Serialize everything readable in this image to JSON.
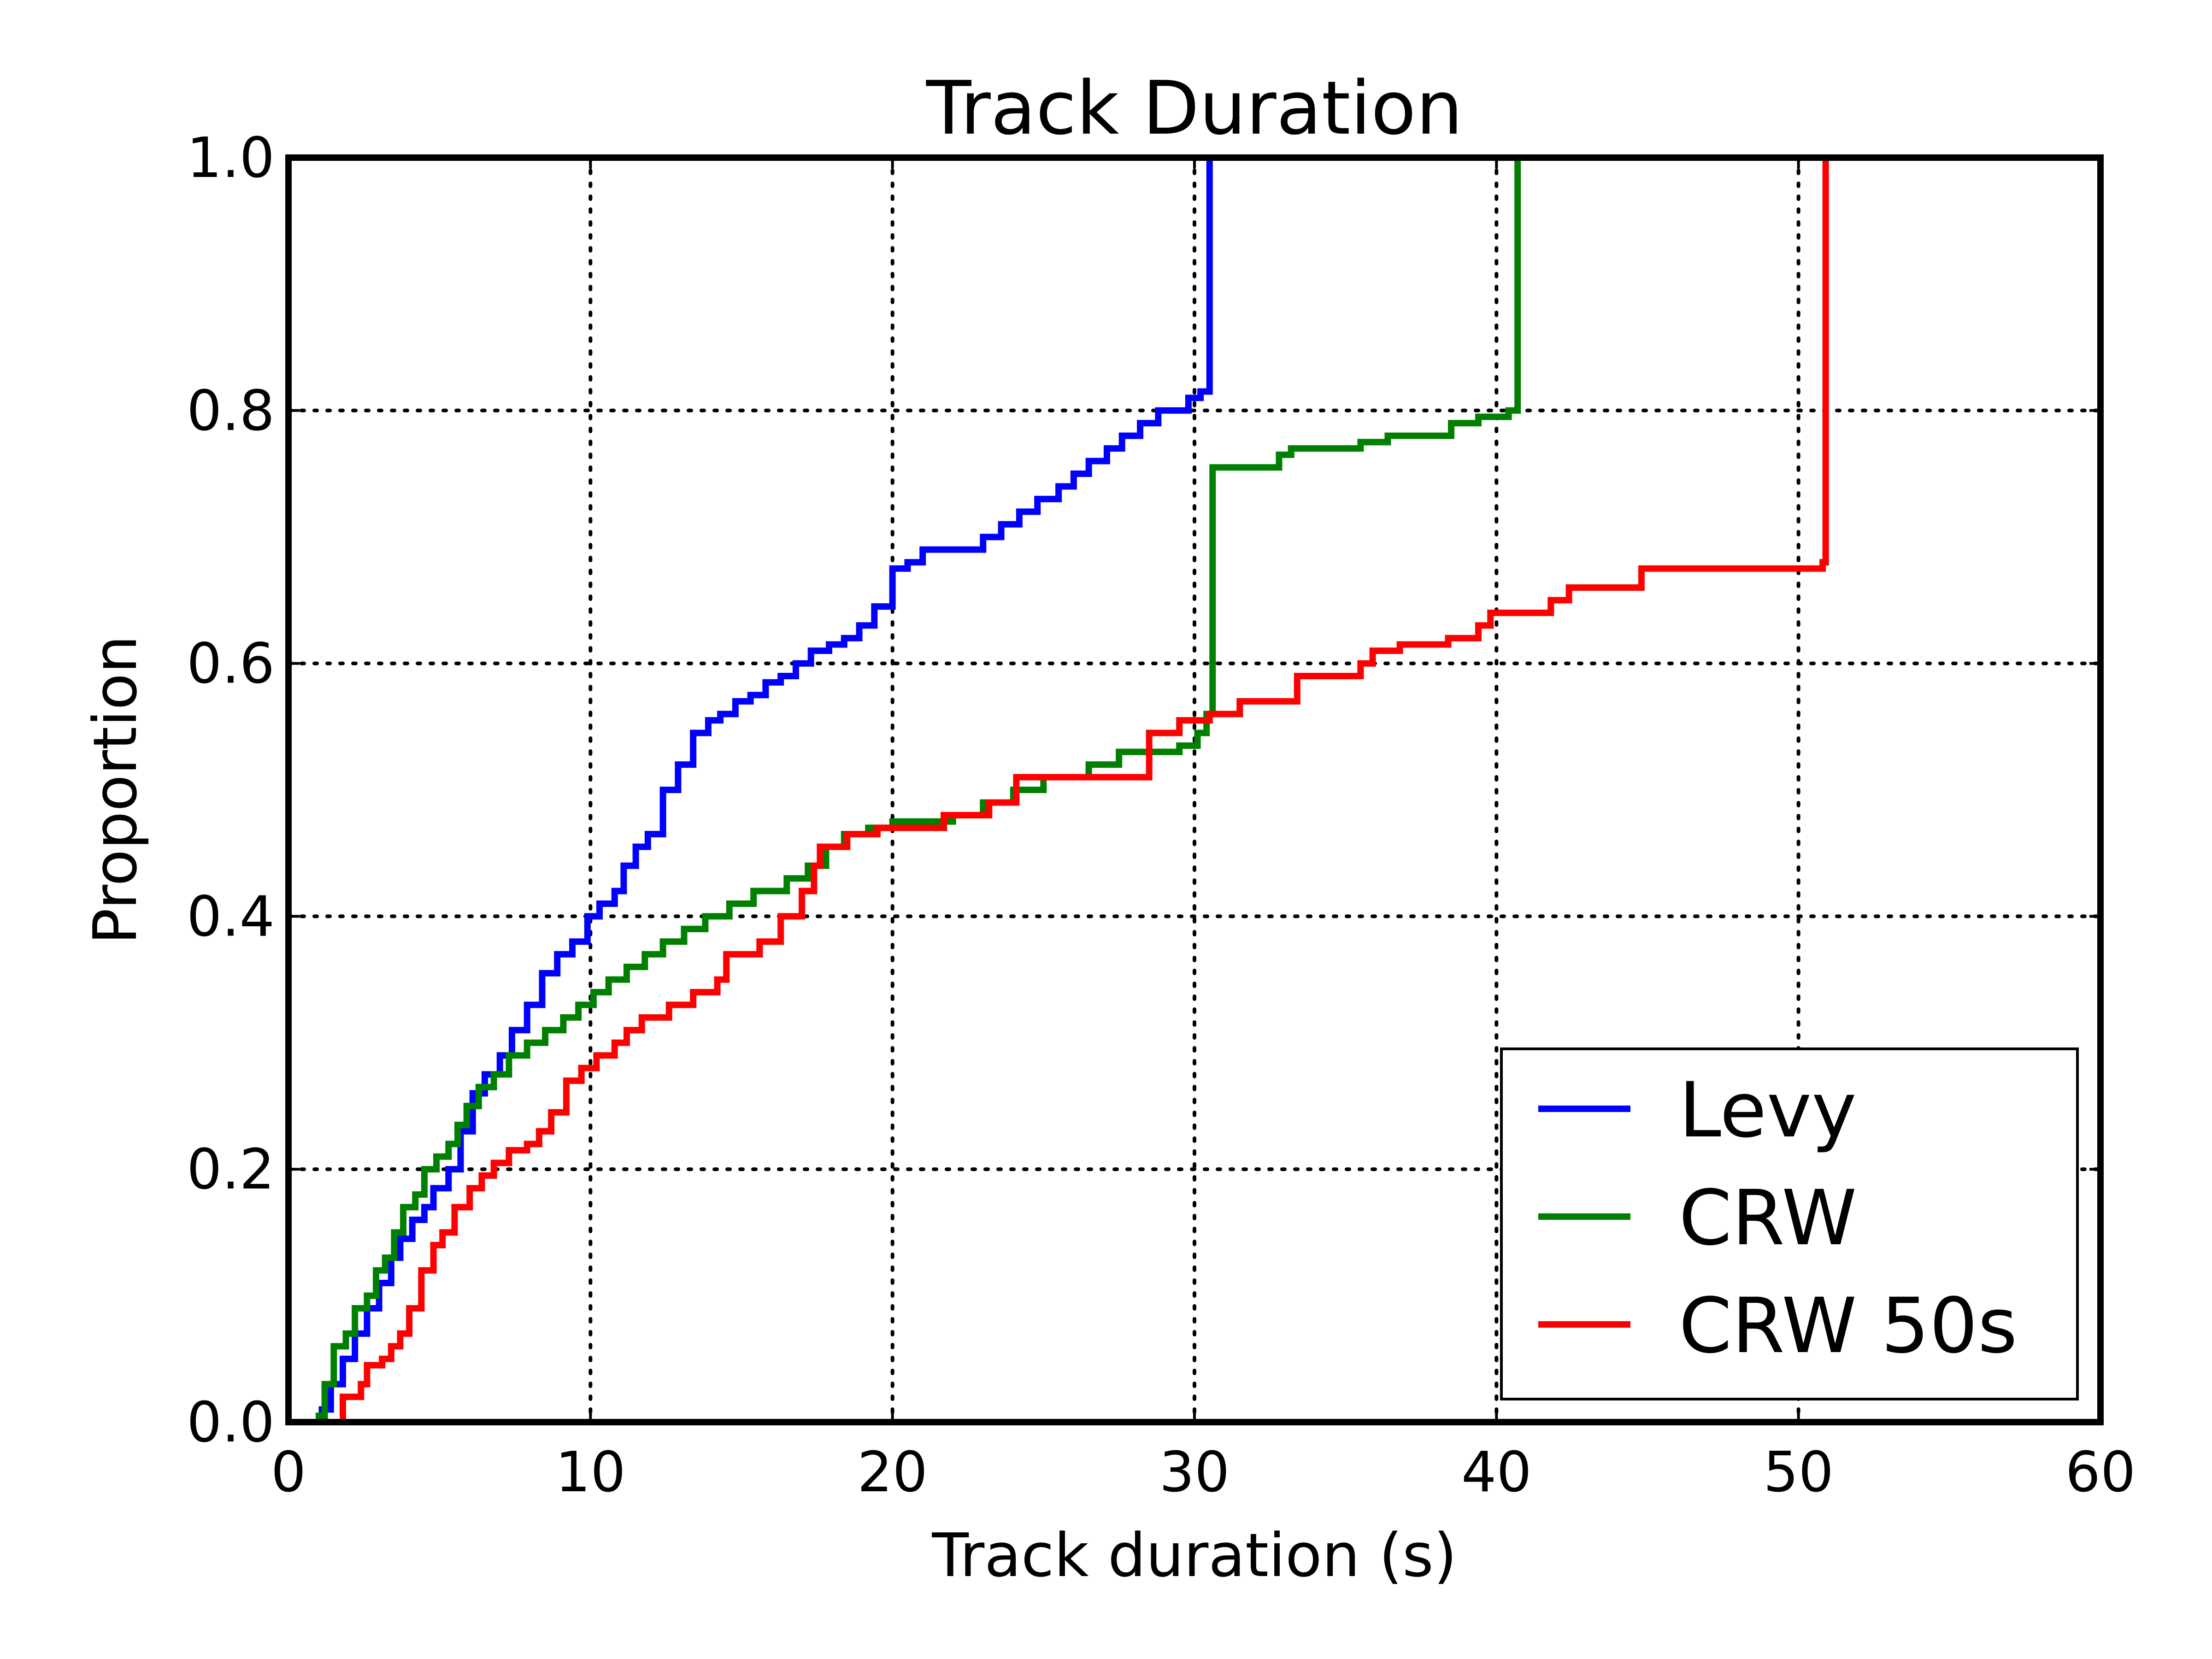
{
  "chart_data": {
    "type": "line",
    "title": "Track Duration",
    "xlabel": "Track duration (s)",
    "ylabel": "Proportion",
    "xlim": [
      0,
      60
    ],
    "ylim": [
      0,
      1
    ],
    "xticks": [
      0,
      10,
      20,
      30,
      40,
      50,
      60
    ],
    "yticks": [
      0.0,
      0.2,
      0.4,
      0.6,
      0.8,
      1.0
    ],
    "xtick_labels": [
      "0",
      "10",
      "20",
      "30",
      "40",
      "50",
      "60"
    ],
    "ytick_labels": [
      "0.0",
      "0.2",
      "0.4",
      "0.6",
      "0.8",
      "1.0"
    ],
    "grid": true,
    "legend_position": "bottom-right",
    "series": [
      {
        "name": "Levy",
        "color": "#0000ff",
        "step": true,
        "points": [
          [
            1.0,
            0.01
          ],
          [
            1.4,
            0.03
          ],
          [
            1.8,
            0.05
          ],
          [
            2.2,
            0.07
          ],
          [
            2.6,
            0.09
          ],
          [
            3.0,
            0.11
          ],
          [
            3.4,
            0.13
          ],
          [
            3.7,
            0.145
          ],
          [
            4.1,
            0.16
          ],
          [
            4.5,
            0.17
          ],
          [
            4.8,
            0.185
          ],
          [
            5.3,
            0.2
          ],
          [
            5.7,
            0.23
          ],
          [
            6.1,
            0.26
          ],
          [
            6.5,
            0.275
          ],
          [
            7.0,
            0.29
          ],
          [
            7.4,
            0.31
          ],
          [
            7.9,
            0.33
          ],
          [
            8.4,
            0.355
          ],
          [
            8.9,
            0.37
          ],
          [
            9.4,
            0.38
          ],
          [
            9.9,
            0.4
          ],
          [
            10.3,
            0.41
          ],
          [
            10.8,
            0.42
          ],
          [
            11.1,
            0.44
          ],
          [
            11.5,
            0.455
          ],
          [
            11.9,
            0.465
          ],
          [
            12.4,
            0.5
          ],
          [
            12.9,
            0.52
          ],
          [
            13.4,
            0.545
          ],
          [
            13.9,
            0.555
          ],
          [
            14.3,
            0.56
          ],
          [
            14.8,
            0.57
          ],
          [
            15.3,
            0.575
          ],
          [
            15.8,
            0.585
          ],
          [
            16.3,
            0.59
          ],
          [
            16.8,
            0.6
          ],
          [
            17.3,
            0.61
          ],
          [
            17.9,
            0.615
          ],
          [
            18.4,
            0.62
          ],
          [
            18.9,
            0.63
          ],
          [
            19.4,
            0.645
          ],
          [
            20.0,
            0.675
          ],
          [
            20.5,
            0.68
          ],
          [
            21.0,
            0.69
          ],
          [
            23.0,
            0.7
          ],
          [
            23.6,
            0.71
          ],
          [
            24.2,
            0.72
          ],
          [
            24.8,
            0.73
          ],
          [
            25.5,
            0.74
          ],
          [
            26.0,
            0.75
          ],
          [
            26.5,
            0.76
          ],
          [
            27.1,
            0.77
          ],
          [
            27.6,
            0.78
          ],
          [
            28.2,
            0.79
          ],
          [
            28.8,
            0.8
          ],
          [
            29.8,
            0.81
          ],
          [
            30.2,
            0.815
          ],
          [
            30.5,
            1.0
          ]
        ]
      },
      {
        "name": "CRW",
        "color": "#008000",
        "step": true,
        "points": [
          [
            0.9,
            0.005
          ],
          [
            1.2,
            0.03
          ],
          [
            1.5,
            0.06
          ],
          [
            1.9,
            0.07
          ],
          [
            2.2,
            0.09
          ],
          [
            2.6,
            0.1
          ],
          [
            2.9,
            0.12
          ],
          [
            3.2,
            0.13
          ],
          [
            3.5,
            0.15
          ],
          [
            3.8,
            0.17
          ],
          [
            4.2,
            0.18
          ],
          [
            4.5,
            0.2
          ],
          [
            4.9,
            0.21
          ],
          [
            5.3,
            0.22
          ],
          [
            5.6,
            0.235
          ],
          [
            5.9,
            0.25
          ],
          [
            6.3,
            0.265
          ],
          [
            6.8,
            0.275
          ],
          [
            7.3,
            0.29
          ],
          [
            7.9,
            0.3
          ],
          [
            8.5,
            0.31
          ],
          [
            9.1,
            0.32
          ],
          [
            9.6,
            0.33
          ],
          [
            10.1,
            0.34
          ],
          [
            10.6,
            0.35
          ],
          [
            11.2,
            0.36
          ],
          [
            11.8,
            0.37
          ],
          [
            12.4,
            0.38
          ],
          [
            13.1,
            0.39
          ],
          [
            13.8,
            0.4
          ],
          [
            14.6,
            0.41
          ],
          [
            15.4,
            0.42
          ],
          [
            16.5,
            0.43
          ],
          [
            17.2,
            0.44
          ],
          [
            17.8,
            0.455
          ],
          [
            18.4,
            0.465
          ],
          [
            19.2,
            0.47
          ],
          [
            20.0,
            0.475
          ],
          [
            22.0,
            0.48
          ],
          [
            23.0,
            0.49
          ],
          [
            24.0,
            0.5
          ],
          [
            25.0,
            0.51
          ],
          [
            26.5,
            0.52
          ],
          [
            27.5,
            0.53
          ],
          [
            29.5,
            0.535
          ],
          [
            30.1,
            0.545
          ],
          [
            30.4,
            0.56
          ],
          [
            30.6,
            0.755
          ],
          [
            32.8,
            0.765
          ],
          [
            33.2,
            0.77
          ],
          [
            35.5,
            0.775
          ],
          [
            36.4,
            0.78
          ],
          [
            38.5,
            0.79
          ],
          [
            39.4,
            0.795
          ],
          [
            40.4,
            0.8
          ],
          [
            40.7,
            1.0
          ]
        ]
      },
      {
        "name": "CRW 50s",
        "color": "#ff0000",
        "step": true,
        "points": [
          [
            1.7,
            0.005
          ],
          [
            1.8,
            0.02
          ],
          [
            2.4,
            0.03
          ],
          [
            2.6,
            0.045
          ],
          [
            3.1,
            0.05
          ],
          [
            3.4,
            0.06
          ],
          [
            3.7,
            0.07
          ],
          [
            4.0,
            0.09
          ],
          [
            4.4,
            0.12
          ],
          [
            4.8,
            0.14
          ],
          [
            5.1,
            0.15
          ],
          [
            5.5,
            0.17
          ],
          [
            6.0,
            0.185
          ],
          [
            6.4,
            0.195
          ],
          [
            6.8,
            0.205
          ],
          [
            7.3,
            0.215
          ],
          [
            7.9,
            0.22
          ],
          [
            8.3,
            0.23
          ],
          [
            8.7,
            0.245
          ],
          [
            9.2,
            0.27
          ],
          [
            9.7,
            0.28
          ],
          [
            10.2,
            0.29
          ],
          [
            10.8,
            0.3
          ],
          [
            11.2,
            0.31
          ],
          [
            11.7,
            0.32
          ],
          [
            12.6,
            0.33
          ],
          [
            13.4,
            0.34
          ],
          [
            14.2,
            0.35
          ],
          [
            14.5,
            0.37
          ],
          [
            15.6,
            0.38
          ],
          [
            16.3,
            0.4
          ],
          [
            17.0,
            0.42
          ],
          [
            17.4,
            0.44
          ],
          [
            17.6,
            0.455
          ],
          [
            18.5,
            0.465
          ],
          [
            19.5,
            0.47
          ],
          [
            21.7,
            0.48
          ],
          [
            23.2,
            0.49
          ],
          [
            24.1,
            0.51
          ],
          [
            28.5,
            0.545
          ],
          [
            29.5,
            0.555
          ],
          [
            30.5,
            0.56
          ],
          [
            31.5,
            0.57
          ],
          [
            33.4,
            0.59
          ],
          [
            35.5,
            0.6
          ],
          [
            35.9,
            0.61
          ],
          [
            36.8,
            0.615
          ],
          [
            38.4,
            0.62
          ],
          [
            39.4,
            0.63
          ],
          [
            39.8,
            0.64
          ],
          [
            41.8,
            0.65
          ],
          [
            42.4,
            0.66
          ],
          [
            44.8,
            0.675
          ],
          [
            50.8,
            0.68
          ],
          [
            50.9,
            1.0
          ]
        ]
      }
    ]
  }
}
